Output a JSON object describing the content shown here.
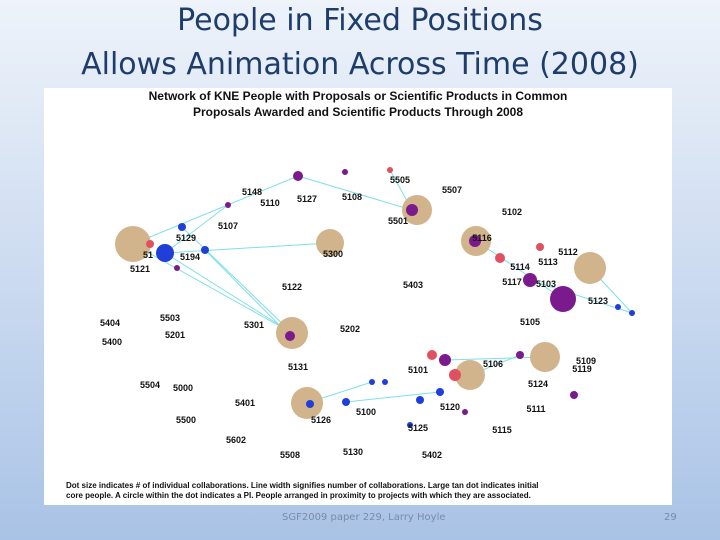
{
  "title": {
    "line1": "People in Fixed Positions",
    "line2": "Allows Animation Across Time (2008)"
  },
  "figure": {
    "heading1": "Network of KNE People with Proposals or Scientific Products in Common",
    "heading2": "Proposals Awarded and Scientific Products Through 2008",
    "caption1": "Dot size indicates # of individual collaborations. Line width signifies number of collaborations. Large tan dot indicates initial",
    "caption2": "core people. A circle within the dot indicates a PI. People arranged in proximity to projects with which they are associated.",
    "nodes": [
      "5505",
      "5507",
      "5148",
      "5110",
      "5127",
      "5108",
      "5102",
      "5501",
      "5107",
      "5129",
      "5116",
      "5112",
      "5300",
      "5194",
      "51",
      "5113",
      "5114",
      "5121",
      "5117",
      "5103",
      "5122",
      "5403",
      "5123",
      "5404",
      "5503",
      "5301",
      "5202",
      "5105",
      "5201",
      "5400",
      "5109",
      "5119",
      "5106",
      "5131",
      "5101",
      "5124",
      "5504",
      "5000",
      "5401",
      "5120",
      "5111",
      "5100",
      "5126",
      "5500",
      "5125",
      "5115",
      "5602",
      "5130",
      "5508",
      "5402"
    ]
  },
  "footer": {
    "source": "SGF2009 paper 229, Larry Hoyle",
    "page": "29"
  }
}
